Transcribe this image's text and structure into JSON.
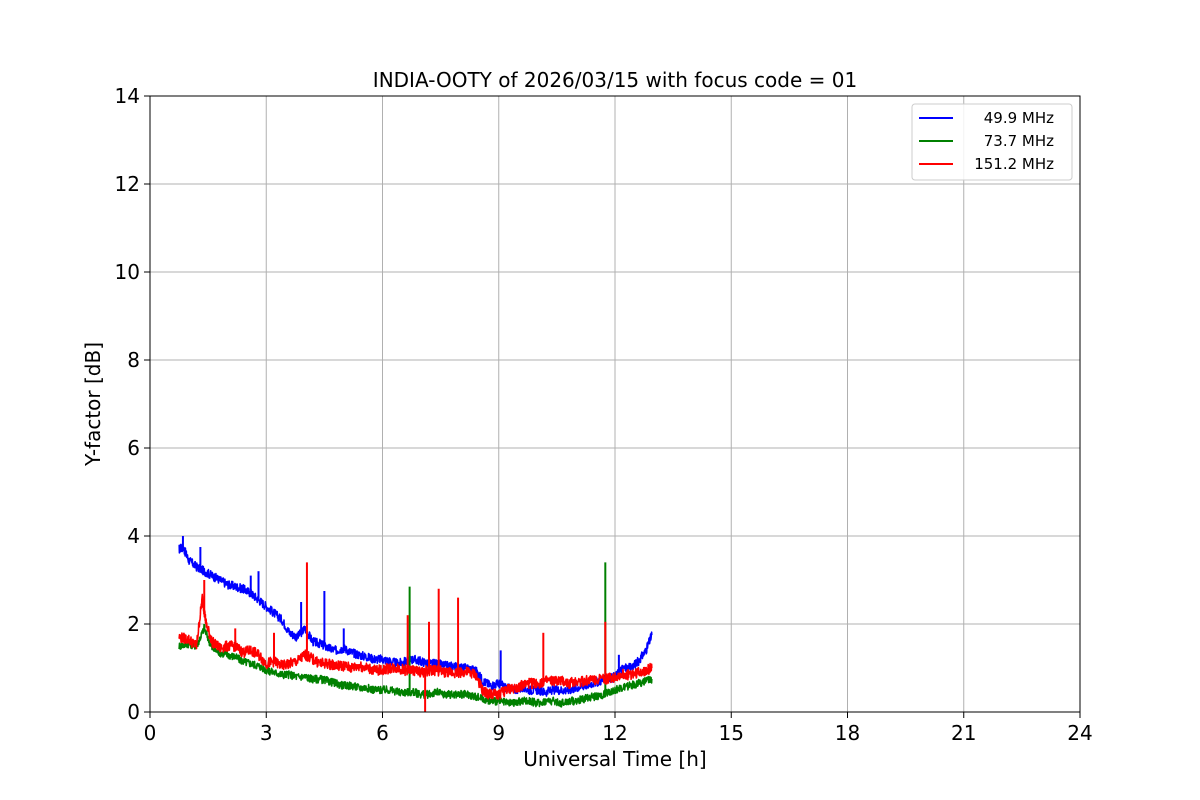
{
  "chart_data": {
    "type": "line",
    "title": "INDIA-OOTY of 2026/03/15 with focus code = 01",
    "xlabel": "Universal Time [h]",
    "ylabel": "Y-factor [dB]",
    "xlim": [
      0,
      24
    ],
    "ylim": [
      0,
      14
    ],
    "xticks": [
      0,
      3,
      6,
      9,
      12,
      15,
      18,
      21,
      24
    ],
    "yticks": [
      0,
      2,
      4,
      6,
      8,
      10,
      12,
      14
    ],
    "grid": true,
    "legend_position": "top-right",
    "series": [
      {
        "name": "49.9 MHz",
        "color": "#0000ff",
        "x": [
          0.75,
          0.85,
          1.0,
          1.2,
          1.4,
          1.6,
          1.8,
          2.0,
          2.2,
          2.4,
          2.6,
          2.8,
          3.0,
          3.2,
          3.4,
          3.6,
          3.8,
          4.0,
          4.2,
          4.4,
          4.6,
          4.8,
          5.0,
          5.2,
          5.4,
          5.6,
          5.8,
          6.0,
          6.2,
          6.4,
          6.6,
          6.8,
          7.0,
          7.2,
          7.4,
          7.6,
          7.8,
          8.0,
          8.2,
          8.4,
          8.6,
          8.8,
          9.0,
          9.2,
          9.4,
          9.6,
          9.8,
          10.0,
          10.2,
          10.4,
          10.6,
          10.8,
          11.0,
          11.2,
          11.4,
          11.6,
          11.8,
          12.0,
          12.2,
          12.4,
          12.6,
          12.8,
          12.95
        ],
        "y": [
          3.7,
          3.75,
          3.45,
          3.3,
          3.2,
          3.1,
          3.0,
          2.9,
          2.85,
          2.8,
          2.7,
          2.55,
          2.4,
          2.25,
          2.1,
          1.8,
          1.7,
          1.9,
          1.6,
          1.55,
          1.45,
          1.4,
          1.45,
          1.35,
          1.3,
          1.25,
          1.2,
          1.2,
          1.15,
          1.1,
          1.15,
          1.2,
          1.15,
          1.1,
          1.1,
          1.05,
          1.05,
          1.0,
          1.0,
          0.95,
          0.7,
          0.6,
          0.65,
          0.55,
          0.5,
          0.55,
          0.5,
          0.5,
          0.45,
          0.5,
          0.5,
          0.5,
          0.55,
          0.6,
          0.65,
          0.7,
          0.75,
          0.8,
          1.0,
          1.0,
          1.15,
          1.4,
          1.75
        ],
        "spikes": [
          [
            0.85,
            4.0
          ],
          [
            1.3,
            3.75
          ],
          [
            2.6,
            3.1
          ],
          [
            2.8,
            3.2
          ],
          [
            3.9,
            2.5
          ],
          [
            4.5,
            2.75
          ],
          [
            5.0,
            1.9
          ],
          [
            9.05,
            1.4
          ],
          [
            12.1,
            1.3
          ]
        ]
      },
      {
        "name": "73.7 MHz",
        "color": "#008000",
        "x": [
          0.75,
          1.0,
          1.2,
          1.4,
          1.6,
          1.8,
          2.0,
          2.2,
          2.4,
          2.6,
          2.8,
          3.0,
          3.2,
          3.4,
          3.6,
          3.8,
          4.0,
          4.2,
          4.4,
          4.6,
          4.8,
          5.0,
          5.2,
          5.4,
          5.6,
          5.8,
          6.0,
          6.2,
          6.4,
          6.6,
          6.8,
          7.0,
          7.2,
          7.4,
          7.6,
          7.8,
          8.0,
          8.2,
          8.4,
          8.6,
          8.8,
          9.0,
          9.2,
          9.4,
          9.6,
          9.8,
          10.0,
          10.2,
          10.4,
          10.6,
          10.8,
          11.0,
          11.2,
          11.4,
          11.6,
          11.8,
          12.0,
          12.2,
          12.4,
          12.6,
          12.8,
          12.95
        ],
        "y": [
          1.5,
          1.55,
          1.5,
          1.9,
          1.45,
          1.35,
          1.3,
          1.25,
          1.15,
          1.1,
          1.05,
          0.95,
          0.9,
          0.85,
          0.85,
          0.8,
          0.8,
          0.75,
          0.75,
          0.7,
          0.65,
          0.6,
          0.6,
          0.55,
          0.55,
          0.5,
          0.5,
          0.5,
          0.45,
          0.45,
          0.45,
          0.4,
          0.4,
          0.45,
          0.4,
          0.4,
          0.4,
          0.4,
          0.35,
          0.3,
          0.25,
          0.25,
          0.2,
          0.2,
          0.25,
          0.25,
          0.2,
          0.25,
          0.25,
          0.2,
          0.25,
          0.25,
          0.3,
          0.35,
          0.35,
          0.45,
          0.5,
          0.55,
          0.6,
          0.65,
          0.7,
          0.75
        ],
        "spikes": [
          [
            1.4,
            2.0
          ],
          [
            6.7,
            2.85
          ],
          [
            11.75,
            3.4
          ]
        ]
      },
      {
        "name": "151.2 MHz",
        "color": "#ff0000",
        "x": [
          0.75,
          1.0,
          1.2,
          1.35,
          1.45,
          1.6,
          1.8,
          2.0,
          2.2,
          2.4,
          2.6,
          2.8,
          3.0,
          3.2,
          3.4,
          3.6,
          3.8,
          4.0,
          4.2,
          4.4,
          4.6,
          4.8,
          5.0,
          5.2,
          5.4,
          5.6,
          5.8,
          6.0,
          6.2,
          6.4,
          6.6,
          6.8,
          7.0,
          7.2,
          7.4,
          7.6,
          7.8,
          8.0,
          8.2,
          8.4,
          8.6,
          8.8,
          9.0,
          9.2,
          9.4,
          9.6,
          9.8,
          10.0,
          10.2,
          10.4,
          10.6,
          10.8,
          11.0,
          11.2,
          11.4,
          11.6,
          11.8,
          12.0,
          12.2,
          12.4,
          12.6,
          12.8,
          12.95
        ],
        "y": [
          1.7,
          1.65,
          1.5,
          2.6,
          2.0,
          1.6,
          1.45,
          1.5,
          1.5,
          1.35,
          1.4,
          1.3,
          1.1,
          1.15,
          1.05,
          1.1,
          1.15,
          1.3,
          1.2,
          1.1,
          1.1,
          1.05,
          1.05,
          1.0,
          1.05,
          1.0,
          0.95,
          0.95,
          1.0,
          1.0,
          0.95,
          0.95,
          0.9,
          0.95,
          0.95,
          0.9,
          0.9,
          0.9,
          0.9,
          0.85,
          0.45,
          0.4,
          0.4,
          0.5,
          0.55,
          0.6,
          0.65,
          0.65,
          0.7,
          0.7,
          0.7,
          0.65,
          0.7,
          0.7,
          0.75,
          0.75,
          0.75,
          0.8,
          0.85,
          0.85,
          0.9,
          0.95,
          1.0
        ],
        "spikes": [
          [
            1.4,
            3.0
          ],
          [
            2.2,
            1.9
          ],
          [
            3.2,
            1.8
          ],
          [
            4.05,
            3.4
          ],
          [
            6.65,
            2.2
          ],
          [
            7.1,
            0.0
          ],
          [
            7.2,
            2.05
          ],
          [
            7.45,
            2.8
          ],
          [
            7.95,
            2.6
          ],
          [
            10.15,
            1.8
          ],
          [
            11.75,
            2.05
          ]
        ]
      }
    ]
  }
}
